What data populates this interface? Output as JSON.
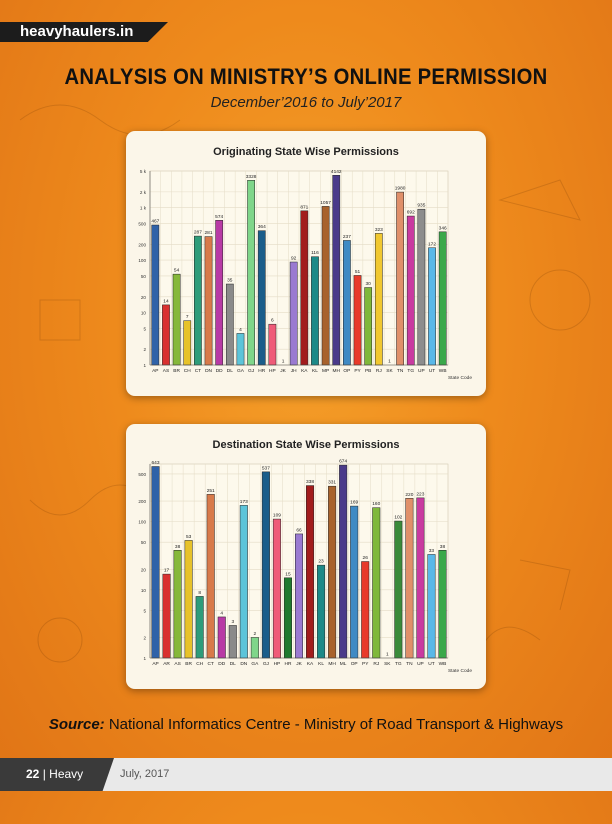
{
  "brand": "heavyhaulers.in",
  "title": "ANALYSIS ON MINISTRY’S ONLINE PERMISSION",
  "subtitle": "December’2016 to July’2017",
  "source": {
    "label": "Source:",
    "text": "National Informatics Centre - Ministry of Road Transport & Highways"
  },
  "footer": {
    "page": "22",
    "publication": "Heavy Haulers",
    "date": "July, 2017"
  },
  "chart_data": [
    {
      "type": "bar",
      "title": "Originating State Wise Permissions",
      "xlabel": "State Code",
      "ylabel": "",
      "scale": "log",
      "ylim": [
        1,
        5000
      ],
      "yticks": [
        1,
        2,
        5,
        10,
        20,
        50,
        100,
        200,
        500,
        1000,
        2000,
        5000
      ],
      "ytick_labels": [
        "1",
        "2",
        "5",
        "10",
        "20",
        "50",
        "100",
        "200",
        "500",
        "1 k",
        "2 k",
        "5 k"
      ],
      "grid": true,
      "categories": [
        "AP",
        "AS",
        "BR",
        "CH",
        "CT",
        "DN",
        "DD",
        "DL",
        "GA",
        "GJ",
        "HR",
        "HP",
        "JK",
        "JH",
        "KA",
        "KL",
        "MP",
        "MH",
        "OP",
        "PY",
        "PB",
        "RJ",
        "SK",
        "TN",
        "TG",
        "UP",
        "UT",
        "WB"
      ],
      "values": [
        467,
        14,
        54,
        7,
        287,
        281,
        574,
        35,
        4,
        3328,
        364,
        6,
        1,
        92,
        871,
        116,
        1057,
        4142,
        237,
        51,
        30,
        323,
        1,
        1980,
        692,
        935,
        172,
        346
      ],
      "labels": [
        "467",
        "14",
        "54",
        "7",
        "287",
        "281",
        "574",
        "35",
        "4",
        "3328",
        "364",
        "6",
        "1",
        "92",
        "871",
        "116",
        "1057",
        "4142",
        "237",
        "51",
        "30",
        "323",
        "1",
        "1980",
        "692",
        "935",
        "172",
        "346"
      ],
      "colors": [
        "#2f62a8",
        "#d9312f",
        "#86b83a",
        "#e7c22a",
        "#2e9c7a",
        "#d87a4a",
        "#b83aa5",
        "#8a8a8a",
        "#5cc4d9",
        "#7fd68a",
        "#1a5d8a",
        "#ef5b78",
        "#1f7a2f",
        "#9a7ad1",
        "#a21c1c",
        "#1d8a88",
        "#a8622c",
        "#4a3a8a",
        "#3f8ac4",
        "#e83a2a",
        "#7fb83a",
        "#f1c830",
        "#3a8a3a",
        "#e0906a",
        "#c93aa0",
        "#8d8d8d",
        "#5ab8e8",
        "#3aa84a"
      ]
    },
    {
      "type": "bar",
      "title": "Destination State Wise Permissions",
      "xlabel": "State Code",
      "ylabel": "",
      "scale": "log",
      "ylim": [
        1,
        700
      ],
      "yticks": [
        1,
        2,
        5,
        10,
        20,
        50,
        100,
        200,
        500
      ],
      "ytick_labels": [
        "1",
        "2",
        "5",
        "10",
        "20",
        "50",
        "100",
        "200",
        "500"
      ],
      "grid": true,
      "categories": [
        "AP",
        "AR",
        "AS",
        "BR",
        "CH",
        "CT",
        "DD",
        "DL",
        "DN",
        "GA",
        "GJ",
        "HP",
        "HR",
        "JK",
        "KA",
        "KL",
        "MH",
        "ML",
        "OP",
        "PY",
        "RJ",
        "SK",
        "TG",
        "TN",
        "UP",
        "UT",
        "WB"
      ],
      "values": [
        643,
        17,
        38,
        53,
        8,
        251,
        4,
        3,
        173,
        2,
        537,
        109,
        15,
        66,
        338,
        23,
        331,
        674,
        169,
        26,
        160,
        1,
        102,
        220,
        223,
        33,
        38
      ],
      "labels": [
        "643",
        "17",
        "38",
        "53",
        "8",
        "251",
        "4",
        "3",
        "173",
        "2",
        "537",
        "109",
        "15",
        "66",
        "338",
        "23",
        "331",
        "674",
        "169",
        "26",
        "160",
        "1",
        "102",
        "220",
        "223",
        "33",
        "38"
      ],
      "colors": [
        "#2f62a8",
        "#d9312f",
        "#86b83a",
        "#e7c22a",
        "#2e9c7a",
        "#d87a4a",
        "#b83aa5",
        "#8a8a8a",
        "#5cc4d9",
        "#7fd68a",
        "#1a5d8a",
        "#ef5b78",
        "#1f7a2f",
        "#9a7ad1",
        "#a21c1c",
        "#1d8a88",
        "#a8622c",
        "#4a3a8a",
        "#3f8ac4",
        "#e83a2a",
        "#7fb83a",
        "#f1c830",
        "#3a8a3a",
        "#e0906a",
        "#c93aa0",
        "#5ab8e8",
        "#3aa84a"
      ]
    }
  ]
}
